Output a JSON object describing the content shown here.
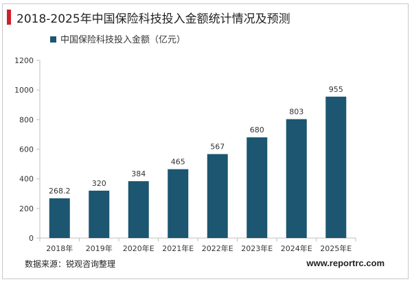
{
  "header": {
    "title": "2018-2025年中国保险科技投入金额统计情况及预测"
  },
  "footer": {
    "source": "数据来源：锐观咨询整理",
    "site": "www.reportrc.com"
  },
  "colors": {
    "bar": "#1c5670",
    "accent": "#d11f2a",
    "axis": "#bfbfbf"
  },
  "chart_data": {
    "type": "bar",
    "categories": [
      "2018年",
      "2019年",
      "2020年E",
      "2021年E",
      "2022年E",
      "2023年E",
      "2024年E",
      "2025年E"
    ],
    "series": [
      {
        "name": "中国保险科技投入金额（亿元）",
        "values": [
          268.2,
          320,
          384,
          465,
          567,
          680,
          803,
          955
        ]
      }
    ],
    "data_labels": [
      "268.2",
      "320",
      "384",
      "465",
      "567",
      "680",
      "803",
      "955"
    ],
    "ylim": [
      0,
      1200
    ],
    "yticks": [
      0,
      200,
      400,
      600,
      800,
      1000,
      1200
    ],
    "legend_position": "top-left",
    "grid": false
  }
}
